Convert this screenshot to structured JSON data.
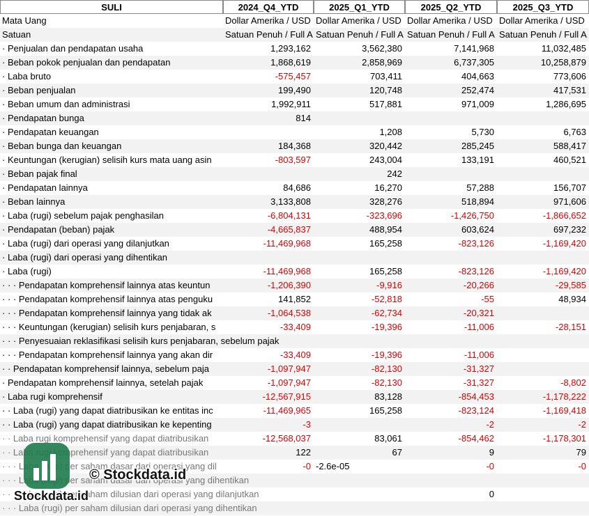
{
  "table": {
    "header": [
      "SULI",
      "2024_Q4_YTD",
      "2025_Q1_YTD",
      "2025_Q2_YTD",
      "2025_Q3_YTD"
    ],
    "rows": [
      [
        "Mata Uang",
        "Dollar Amerika / USD",
        "Dollar Amerika / USD",
        "Dollar Amerika / USD",
        "Dollar Amerika / USD"
      ],
      [
        "Satuan",
        "Satuan Penuh / Full A",
        "Satuan Penuh / Full A",
        "Satuan Penuh / Full A",
        "Satuan Penuh / Full A"
      ],
      [
        "· Penjualan dan pendapatan usaha",
        "1,293,162",
        "3,562,380",
        "7,141,968",
        "11,032,485"
      ],
      [
        "· Beban pokok penjualan dan pendapatan",
        "1,868,619",
        "2,858,969",
        "6,737,305",
        "10,258,879"
      ],
      [
        "· Laba bruto",
        "-575,457",
        "703,411",
        "404,663",
        "773,606"
      ],
      [
        "· Beban penjualan",
        "199,490",
        "120,748",
        "252,474",
        "417,531"
      ],
      [
        "· Beban umum dan administrasi",
        "1,992,911",
        "517,881",
        "971,009",
        "1,286,695"
      ],
      [
        "· Pendapatan bunga",
        "814",
        null,
        null,
        null
      ],
      [
        "· Pendapatan keuangan",
        null,
        "1,208",
        "5,730",
        "6,763"
      ],
      [
        "· Beban bunga dan keuangan",
        "184,368",
        "320,442",
        "285,245",
        "588,417"
      ],
      [
        "· Keuntungan (kerugian) selisih kurs mata uang asin",
        "-803,597",
        "243,004",
        "133,191",
        "460,521"
      ],
      [
        "· Beban pajak final",
        null,
        "242",
        null,
        null
      ],
      [
        "· Pendapatan lainnya",
        "84,686",
        "16,270",
        "57,288",
        "156,707"
      ],
      [
        "· Beban lainnya",
        "3,133,808",
        "328,276",
        "518,894",
        "971,606"
      ],
      [
        "· Laba (rugi) sebelum pajak penghasilan",
        "-6,804,131",
        "-323,696",
        "-1,426,750",
        "-1,866,652"
      ],
      [
        "· Pendapatan (beban) pajak",
        "-4,665,837",
        "488,954",
        "603,624",
        "697,232"
      ],
      [
        "· Laba (rugi) dari operasi yang dilanjutkan",
        "-11,469,968",
        "165,258",
        "-823,126",
        "-1,169,420"
      ],
      [
        "· Laba (rugi) dari operasi yang dihentikan",
        null,
        null,
        null,
        null
      ],
      [
        "· Laba (rugi)",
        "-11,469,968",
        "165,258",
        "-823,126",
        "-1,169,420"
      ],
      [
        "· · · Pendapatan komprehensif lainnya atas keuntun",
        "-1,206,390",
        "-9,916",
        "-20,266",
        "-29,585"
      ],
      [
        "· · · Pendapatan komprehensif lainnya atas penguku",
        "141,852",
        "-52,818",
        "-55",
        "48,934"
      ],
      [
        "· · · Pendapatan komprehensif lainnya yang tidak ak",
        "-1,064,538",
        "-62,734",
        "-20,321",
        null
      ],
      [
        "· · · Keuntungan (kerugian) selisih kurs penjabaran, s",
        "-33,409",
        "-19,396",
        "-11,006",
        "-28,151"
      ],
      [
        "· · · Penyesuaian reklasifikasi selisih kurs penjabaran, sebelum pajak",
        null,
        null,
        null,
        null
      ],
      [
        "· · · Pendapatan komprehensif lainnya yang akan dir",
        "-33,409",
        "-19,396",
        "-11,006",
        null
      ],
      [
        "· · Pendapatan komprehensif lainnya, sebelum paja",
        "-1,097,947",
        "-82,130",
        "-31,327",
        null
      ],
      [
        "· Pendapatan komprehensif lainnya, setelah pajak",
        "-1,097,947",
        "-82,130",
        "-31,327",
        "-8,802"
      ],
      [
        "· Laba rugi komprehensif",
        "-12,567,915",
        "83,128",
        "-854,453",
        "-1,178,222"
      ],
      [
        "· · Laba (rugi) yang dapat diatribusikan ke entitas inc",
        "-11,469,965",
        "165,258",
        "-823,124",
        "-1,169,418"
      ],
      [
        "· · Laba (rugi) yang dapat diatribusikan ke kepenting",
        "-3",
        null,
        "-2",
        "-2"
      ],
      [
        "· · Laba rugi komprehensif yang dapat diatribusikan",
        "-12,568,037",
        "83,061",
        "-854,462",
        "-1,178,301"
      ],
      [
        "· · Laba rugi komprehensif yang dapat diatribusikan",
        "122",
        "67",
        "9",
        "79"
      ],
      [
        "· · · Laba (rugi) per saham dasar dari operasi yang dil",
        "-0",
        "-2.6e-05",
        "-0",
        "-0"
      ],
      [
        "· · · Laba (rugi) per saham dasar dari operasi yang dihentikan",
        null,
        null,
        null,
        null
      ],
      [
        "· · · Laba (rugi) per saham dilusian dari operasi yang dilanjutkan",
        null,
        null,
        "0",
        null
      ],
      [
        "· · · Laba (rugi) per saham dilusian dari operasi yang dihentikan",
        null,
        null,
        null,
        null
      ]
    ]
  },
  "watermark": {
    "text": "© Stockdata.id",
    "logo_text": "Stockdata.id"
  }
}
